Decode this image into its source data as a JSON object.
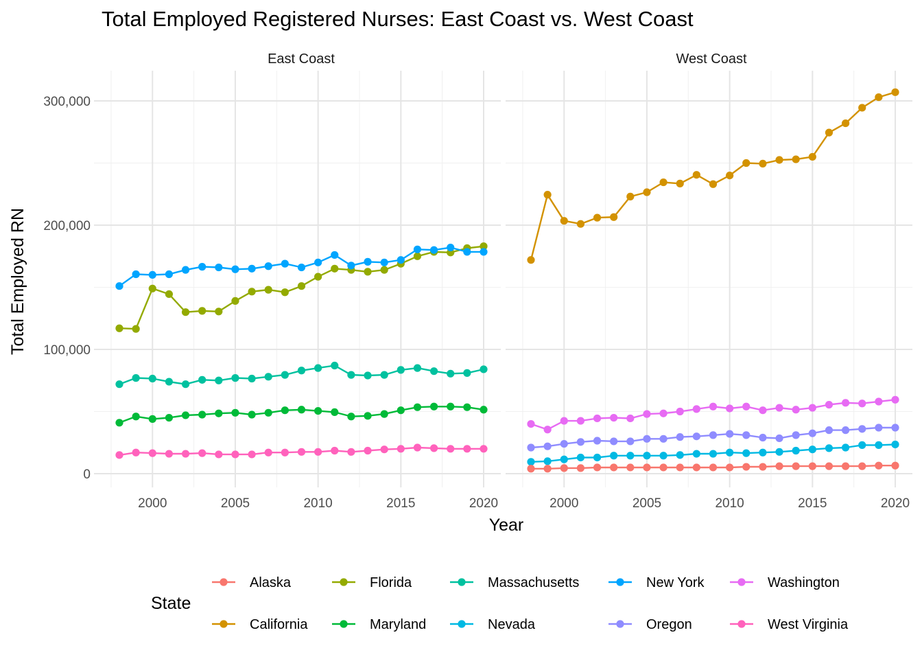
{
  "chart_data": {
    "type": "line",
    "title": "Total Employed Registered Nurses: East Coast vs. West Coast",
    "xlabel": "Year",
    "ylabel": "Total Employed RN",
    "legend_title": "State",
    "legend_position": "bottom",
    "grid": true,
    "xlim": [
      1997.5,
      2020.5
    ],
    "ylim": [
      -10000,
      320000
    ],
    "x_ticks": [
      2000,
      2005,
      2010,
      2015,
      2020
    ],
    "x_tick_labels": [
      "2000",
      "2005",
      "2010",
      "2015",
      "2020"
    ],
    "y_ticks": [
      0,
      100000,
      200000,
      300000
    ],
    "y_tick_labels": [
      "0",
      "100,000",
      "200,000",
      "300,000"
    ],
    "x": [
      1998,
      1999,
      2000,
      2001,
      2002,
      2003,
      2004,
      2005,
      2006,
      2007,
      2008,
      2009,
      2010,
      2011,
      2012,
      2013,
      2014,
      2015,
      2016,
      2017,
      2018,
      2019,
      2020
    ],
    "legend": [
      {
        "name": "Alaska",
        "color": "#F8766D"
      },
      {
        "name": "California",
        "color": "#D39200"
      },
      {
        "name": "Florida",
        "color": "#93AA00"
      },
      {
        "name": "Maryland",
        "color": "#00BA38"
      },
      {
        "name": "Massachusetts",
        "color": "#00C19F"
      },
      {
        "name": "Nevada",
        "color": "#00B9E3"
      },
      {
        "name": "New York",
        "color": "#00A5FF"
      },
      {
        "name": "Oregon",
        "color": "#8F8CFF"
      },
      {
        "name": "Washington",
        "color": "#E76BF3"
      },
      {
        "name": "West Virginia",
        "color": "#FF62BC"
      }
    ],
    "panels": [
      {
        "name": "East Coast",
        "series": [
          {
            "name": "Florida",
            "color": "#93AA00",
            "values": [
              117000,
              116500,
              149000,
              144500,
              130000,
              131000,
              130500,
              139000,
              146500,
              148000,
              146000,
              151000,
              158500,
              165000,
              164000,
              162500,
              164000,
              169000,
              175000,
              178500,
              178000,
              181500,
              183000
            ]
          },
          {
            "name": "New York",
            "color": "#00A5FF",
            "values": [
              151000,
              160500,
              160000,
              160500,
              164000,
              166500,
              166000,
              164500,
              165000,
              167000,
              169000,
              166000,
              170000,
              176000,
              167500,
              170500,
              170000,
              172000,
              180500,
              180000,
              182000,
              178500,
              178500
            ]
          },
          {
            "name": "Massachusetts",
            "color": "#00C19F",
            "values": [
              72000,
              77000,
              76500,
              74000,
              72000,
              75500,
              75000,
              77000,
              76500,
              78000,
              79500,
              83000,
              85000,
              87000,
              79500,
              79000,
              79500,
              83500,
              85000,
              82500,
              80500,
              81000,
              84000
            ]
          },
          {
            "name": "Maryland",
            "color": "#00BA38",
            "values": [
              41000,
              46000,
              44000,
              45000,
              47000,
              47500,
              48500,
              49000,
              47500,
              49000,
              51000,
              51500,
              50500,
              49500,
              46000,
              46500,
              48000,
              51000,
              53500,
              54000,
              54000,
              53500,
              51500
            ]
          },
          {
            "name": "West Virginia",
            "color": "#FF62BC",
            "values": [
              15000,
              17000,
              16500,
              16000,
              16000,
              16500,
              15500,
              15500,
              15500,
              17000,
              17000,
              17500,
              17500,
              18500,
              17500,
              18500,
              19500,
              20000,
              21000,
              20500,
              20000,
              20000,
              20000
            ]
          }
        ]
      },
      {
        "name": "West Coast",
        "series": [
          {
            "name": "California",
            "color": "#D39200",
            "values": [
              172000,
              224500,
              203500,
              201000,
              206000,
              206500,
              223000,
              226500,
              234500,
              233500,
              240500,
              233000,
              240000,
              250000,
              249500,
              252500,
              253000,
              255000,
              274500,
              282000,
              294500,
              303000,
              307000
            ]
          },
          {
            "name": "Washington",
            "color": "#E76BF3",
            "values": [
              40000,
              35500,
              42500,
              42500,
              44500,
              45000,
              44500,
              48000,
              48500,
              50000,
              52000,
              54000,
              52500,
              54000,
              51000,
              53000,
              51500,
              53000,
              55500,
              57000,
              56500,
              58000,
              59500
            ]
          },
          {
            "name": "Oregon",
            "color": "#8F8CFF",
            "values": [
              21000,
              22000,
              24000,
              25500,
              26500,
              26000,
              26000,
              28000,
              28000,
              29500,
              30000,
              31000,
              32000,
              31000,
              29000,
              28500,
              31000,
              32500,
              35000,
              35000,
              36000,
              37000,
              37000
            ]
          },
          {
            "name": "Nevada",
            "color": "#00B9E3",
            "values": [
              9500,
              10000,
              11500,
              13000,
              13000,
              14500,
              14500,
              14500,
              14500,
              15000,
              16000,
              16000,
              17000,
              16500,
              17000,
              17500,
              18500,
              19500,
              20500,
              21000,
              23000,
              23000,
              23500
            ]
          },
          {
            "name": "Alaska",
            "color": "#F8766D",
            "values": [
              4000,
              4000,
              4500,
              4500,
              5000,
              5000,
              5000,
              5000,
              5000,
              5000,
              5000,
              5000,
              5000,
              5500,
              5500,
              6000,
              6000,
              6000,
              6000,
              6000,
              6000,
              6500,
              6500
            ]
          }
        ]
      }
    ]
  }
}
